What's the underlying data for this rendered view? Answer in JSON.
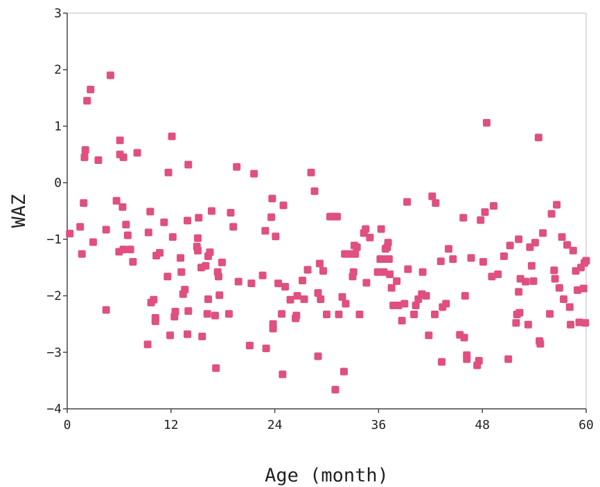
{
  "chart_data": {
    "type": "scatter",
    "title": "",
    "xlabel": "Age (month)",
    "ylabel": "WAZ",
    "xlim": [
      0,
      60
    ],
    "ylim": [
      -4,
      3
    ],
    "xticks": [
      0,
      12,
      24,
      36,
      48,
      60
    ],
    "yticks": [
      3,
      2,
      1,
      0,
      -1,
      -2,
      -3,
      -4
    ],
    "xtick_labels": [
      "0",
      "12",
      "24",
      "36",
      "48",
      "60"
    ],
    "ytick_labels": [
      "3",
      "2",
      "1",
      "0",
      "−1",
      "−2",
      "−3",
      "−4"
    ],
    "grid": false,
    "marker": "square",
    "color": "#e0507e",
    "points": [
      [
        0.3,
        -0.9
      ],
      [
        1.5,
        -0.78
      ],
      [
        1.7,
        -1.26
      ],
      [
        1.9,
        -0.36
      ],
      [
        2.0,
        0.45
      ],
      [
        2.1,
        0.58
      ],
      [
        2.3,
        1.45
      ],
      [
        2.7,
        1.65
      ],
      [
        3.0,
        -1.05
      ],
      [
        3.6,
        0.4
      ],
      [
        4.5,
        -0.83
      ],
      [
        4.5,
        -2.25
      ],
      [
        5.0,
        1.9
      ],
      [
        5.7,
        -0.32
      ],
      [
        6.0,
        -1.22
      ],
      [
        6.1,
        0.75
      ],
      [
        6.1,
        0.5
      ],
      [
        6.4,
        -0.43
      ],
      [
        6.5,
        -1.18
      ],
      [
        6.5,
        0.45
      ],
      [
        6.8,
        -0.74
      ],
      [
        7.0,
        -0.93
      ],
      [
        7.3,
        -1.18
      ],
      [
        7.6,
        -1.4
      ],
      [
        8.1,
        0.53
      ],
      [
        9.3,
        -2.86
      ],
      [
        9.4,
        -0.88
      ],
      [
        9.6,
        -0.51
      ],
      [
        9.7,
        -2.12
      ],
      [
        10.0,
        -2.07
      ],
      [
        10.2,
        -2.39
      ],
      [
        10.2,
        -2.45
      ],
      [
        10.3,
        -1.29
      ],
      [
        10.7,
        -1.24
      ],
      [
        11.2,
        -0.7
      ],
      [
        11.6,
        -1.66
      ],
      [
        11.7,
        0.18
      ],
      [
        11.9,
        -2.7
      ],
      [
        12.1,
        0.82
      ],
      [
        12.2,
        -0.96
      ],
      [
        12.4,
        -2.37
      ],
      [
        12.5,
        -2.28
      ],
      [
        13.1,
        -1.33
      ],
      [
        13.2,
        -1.58
      ],
      [
        13.4,
        -1.97
      ],
      [
        13.6,
        -1.89
      ],
      [
        13.9,
        -0.67
      ],
      [
        13.9,
        -2.68
      ],
      [
        14.0,
        -2.27
      ],
      [
        14.0,
        0.32
      ],
      [
        15.0,
        -1.13
      ],
      [
        15.1,
        -1.2
      ],
      [
        15.1,
        -0.98
      ],
      [
        15.2,
        -0.62
      ],
      [
        15.5,
        -1.5
      ],
      [
        15.6,
        -2.72
      ],
      [
        16.0,
        -1.47
      ],
      [
        16.2,
        -2.32
      ],
      [
        16.3,
        -2.06
      ],
      [
        16.3,
        -1.3
      ],
      [
        16.5,
        -1.23
      ],
      [
        16.7,
        -0.5
      ],
      [
        17.1,
        -2.35
      ],
      [
        17.2,
        -3.28
      ],
      [
        17.4,
        -1.58
      ],
      [
        17.5,
        -1.66
      ],
      [
        17.6,
        -1.99
      ],
      [
        17.9,
        -1.41
      ],
      [
        18.7,
        -2.32
      ],
      [
        18.9,
        -0.53
      ],
      [
        19.2,
        -0.78
      ],
      [
        19.6,
        0.28
      ],
      [
        19.8,
        -1.75
      ],
      [
        21.1,
        -2.88
      ],
      [
        21.3,
        -1.78
      ],
      [
        21.6,
        0.16
      ],
      [
        22.6,
        -1.64
      ],
      [
        22.9,
        -0.85
      ],
      [
        23.0,
        -2.93
      ],
      [
        23.6,
        -0.61
      ],
      [
        23.7,
        -0.28
      ],
      [
        23.8,
        -2.5
      ],
      [
        23.8,
        -2.58
      ],
      [
        24.1,
        -0.95
      ],
      [
        24.4,
        -1.78
      ],
      [
        24.8,
        -2.32
      ],
      [
        24.9,
        -3.39
      ],
      [
        25.0,
        -0.4
      ],
      [
        25.2,
        -1.84
      ],
      [
        25.8,
        -2.07
      ],
      [
        26.4,
        -2.4
      ],
      [
        26.5,
        -2.35
      ],
      [
        26.6,
        -2.0
      ],
      [
        27.2,
        -1.73
      ],
      [
        27.4,
        -2.06
      ],
      [
        27.8,
        -1.54
      ],
      [
        28.2,
        0.18
      ],
      [
        28.6,
        -0.15
      ],
      [
        29.0,
        -1.95
      ],
      [
        29.0,
        -3.07
      ],
      [
        29.2,
        -1.43
      ],
      [
        29.3,
        -2.06
      ],
      [
        29.6,
        -1.56
      ],
      [
        30.0,
        -2.33
      ],
      [
        30.4,
        -0.6
      ],
      [
        30.9,
        -0.6
      ],
      [
        31.0,
        -3.66
      ],
      [
        31.2,
        -0.6
      ],
      [
        31.4,
        -2.33
      ],
      [
        31.8,
        -2.02
      ],
      [
        32.0,
        -3.34
      ],
      [
        32.1,
        -1.26
      ],
      [
        32.2,
        -2.14
      ],
      [
        32.8,
        -1.26
      ],
      [
        33.0,
        -1.66
      ],
      [
        33.1,
        -1.58
      ],
      [
        33.2,
        -1.11
      ],
      [
        33.3,
        -1.26
      ],
      [
        33.5,
        -1.14
      ],
      [
        33.8,
        -2.33
      ],
      [
        34.3,
        -0.89
      ],
      [
        34.5,
        -0.82
      ],
      [
        34.6,
        -1.77
      ],
      [
        35.0,
        -0.97
      ],
      [
        35.9,
        -1.58
      ],
      [
        36.2,
        -1.35
      ],
      [
        36.3,
        -0.82
      ],
      [
        36.5,
        -1.35
      ],
      [
        36.6,
        -1.58
      ],
      [
        36.8,
        -1.17
      ],
      [
        37.0,
        -1.14
      ],
      [
        37.1,
        -1.06
      ],
      [
        37.2,
        -1.35
      ],
      [
        37.3,
        -1.62
      ],
      [
        37.5,
        -1.86
      ],
      [
        37.7,
        -2.17
      ],
      [
        38.1,
        -1.74
      ],
      [
        38.3,
        -2.17
      ],
      [
        38.7,
        -2.44
      ],
      [
        39.0,
        -2.14
      ],
      [
        39.3,
        -0.34
      ],
      [
        39.4,
        -1.53
      ],
      [
        40.1,
        -2.33
      ],
      [
        40.3,
        -2.17
      ],
      [
        40.6,
        -2.06
      ],
      [
        41.0,
        -1.97
      ],
      [
        41.1,
        -1.58
      ],
      [
        41.5,
        -2.0
      ],
      [
        41.8,
        -2.7
      ],
      [
        42.2,
        -0.24
      ],
      [
        42.5,
        -2.33
      ],
      [
        42.6,
        -0.36
      ],
      [
        43.2,
        -1.39
      ],
      [
        43.3,
        -3.17
      ],
      [
        43.4,
        -2.2
      ],
      [
        43.8,
        -2.14
      ],
      [
        44.1,
        -1.17
      ],
      [
        44.6,
        -1.35
      ],
      [
        45.4,
        -2.69
      ],
      [
        45.8,
        -0.62
      ],
      [
        45.9,
        -2.74
      ],
      [
        46.0,
        -2.0
      ],
      [
        46.2,
        -3.05
      ],
      [
        46.2,
        -3.12
      ],
      [
        46.7,
        -1.33
      ],
      [
        47.4,
        -3.23
      ],
      [
        47.6,
        -3.15
      ],
      [
        47.8,
        -0.66
      ],
      [
        48.1,
        -1.4
      ],
      [
        48.3,
        -0.52
      ],
      [
        48.5,
        1.06
      ],
      [
        49.1,
        -1.66
      ],
      [
        49.3,
        -0.41
      ],
      [
        49.8,
        -1.62
      ],
      [
        50.5,
        -1.3
      ],
      [
        51.0,
        -3.12
      ],
      [
        51.2,
        -1.11
      ],
      [
        51.9,
        -2.48
      ],
      [
        52.0,
        -2.33
      ],
      [
        52.2,
        -1.93
      ],
      [
        52.2,
        -1.0
      ],
      [
        52.3,
        -2.3
      ],
      [
        52.4,
        -1.7
      ],
      [
        53.0,
        -1.75
      ],
      [
        53.3,
        -2.51
      ],
      [
        53.5,
        -1.14
      ],
      [
        53.7,
        -1.47
      ],
      [
        53.9,
        -1.74
      ],
      [
        54.1,
        -1.06
      ],
      [
        54.5,
        0.8
      ],
      [
        54.6,
        -2.8
      ],
      [
        54.7,
        -2.85
      ],
      [
        55.0,
        -0.89
      ],
      [
        55.8,
        -2.32
      ],
      [
        56.0,
        -0.55
      ],
      [
        56.3,
        -1.55
      ],
      [
        56.4,
        -1.7
      ],
      [
        56.6,
        -0.39
      ],
      [
        56.9,
        -1.86
      ],
      [
        57.2,
        -0.96
      ],
      [
        57.4,
        -2.06
      ],
      [
        57.8,
        -1.1
      ],
      [
        58.1,
        -2.2
      ],
      [
        58.2,
        -2.51
      ],
      [
        58.5,
        -1.2
      ],
      [
        58.8,
        -1.56
      ],
      [
        59.0,
        -1.9
      ],
      [
        59.2,
        -2.47
      ],
      [
        59.4,
        -1.5
      ],
      [
        59.7,
        -1.87
      ],
      [
        59.8,
        -1.42
      ],
      [
        60.0,
        -1.38
      ],
      [
        59.9,
        -2.48
      ]
    ]
  }
}
